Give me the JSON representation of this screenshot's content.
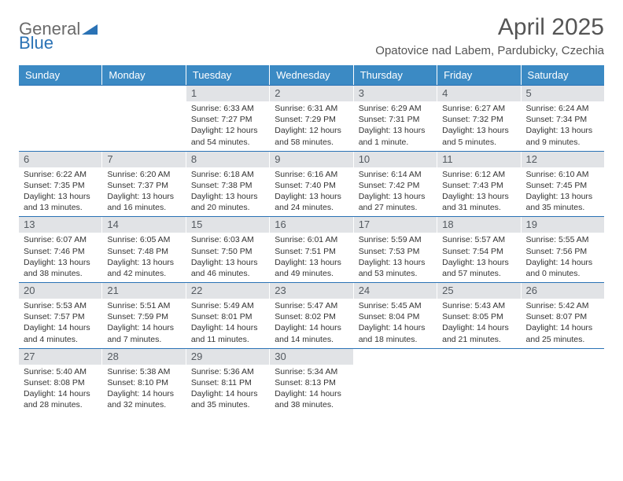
{
  "brand": {
    "word1": "General",
    "word2": "Blue"
  },
  "title": "April 2025",
  "location": "Opatovice nad Labem, Pardubicky, Czechia",
  "colors": {
    "accent": "#3b8ac4",
    "accent_dark": "#2a72b5",
    "daynum_bg": "#e1e3e6",
    "text": "#333333",
    "muted": "#555555"
  },
  "day_headers": [
    "Sunday",
    "Monday",
    "Tuesday",
    "Wednesday",
    "Thursday",
    "Friday",
    "Saturday"
  ],
  "weeks": [
    [
      {
        "empty": true
      },
      {
        "empty": true
      },
      {
        "day": "1",
        "sunrise": "Sunrise: 6:33 AM",
        "sunset": "Sunset: 7:27 PM",
        "daylight": "Daylight: 12 hours and 54 minutes."
      },
      {
        "day": "2",
        "sunrise": "Sunrise: 6:31 AM",
        "sunset": "Sunset: 7:29 PM",
        "daylight": "Daylight: 12 hours and 58 minutes."
      },
      {
        "day": "3",
        "sunrise": "Sunrise: 6:29 AM",
        "sunset": "Sunset: 7:31 PM",
        "daylight": "Daylight: 13 hours and 1 minute."
      },
      {
        "day": "4",
        "sunrise": "Sunrise: 6:27 AM",
        "sunset": "Sunset: 7:32 PM",
        "daylight": "Daylight: 13 hours and 5 minutes."
      },
      {
        "day": "5",
        "sunrise": "Sunrise: 6:24 AM",
        "sunset": "Sunset: 7:34 PM",
        "daylight": "Daylight: 13 hours and 9 minutes."
      }
    ],
    [
      {
        "day": "6",
        "sunrise": "Sunrise: 6:22 AM",
        "sunset": "Sunset: 7:35 PM",
        "daylight": "Daylight: 13 hours and 13 minutes."
      },
      {
        "day": "7",
        "sunrise": "Sunrise: 6:20 AM",
        "sunset": "Sunset: 7:37 PM",
        "daylight": "Daylight: 13 hours and 16 minutes."
      },
      {
        "day": "8",
        "sunrise": "Sunrise: 6:18 AM",
        "sunset": "Sunset: 7:38 PM",
        "daylight": "Daylight: 13 hours and 20 minutes."
      },
      {
        "day": "9",
        "sunrise": "Sunrise: 6:16 AM",
        "sunset": "Sunset: 7:40 PM",
        "daylight": "Daylight: 13 hours and 24 minutes."
      },
      {
        "day": "10",
        "sunrise": "Sunrise: 6:14 AM",
        "sunset": "Sunset: 7:42 PM",
        "daylight": "Daylight: 13 hours and 27 minutes."
      },
      {
        "day": "11",
        "sunrise": "Sunrise: 6:12 AM",
        "sunset": "Sunset: 7:43 PM",
        "daylight": "Daylight: 13 hours and 31 minutes."
      },
      {
        "day": "12",
        "sunrise": "Sunrise: 6:10 AM",
        "sunset": "Sunset: 7:45 PM",
        "daylight": "Daylight: 13 hours and 35 minutes."
      }
    ],
    [
      {
        "day": "13",
        "sunrise": "Sunrise: 6:07 AM",
        "sunset": "Sunset: 7:46 PM",
        "daylight": "Daylight: 13 hours and 38 minutes."
      },
      {
        "day": "14",
        "sunrise": "Sunrise: 6:05 AM",
        "sunset": "Sunset: 7:48 PM",
        "daylight": "Daylight: 13 hours and 42 minutes."
      },
      {
        "day": "15",
        "sunrise": "Sunrise: 6:03 AM",
        "sunset": "Sunset: 7:50 PM",
        "daylight": "Daylight: 13 hours and 46 minutes."
      },
      {
        "day": "16",
        "sunrise": "Sunrise: 6:01 AM",
        "sunset": "Sunset: 7:51 PM",
        "daylight": "Daylight: 13 hours and 49 minutes."
      },
      {
        "day": "17",
        "sunrise": "Sunrise: 5:59 AM",
        "sunset": "Sunset: 7:53 PM",
        "daylight": "Daylight: 13 hours and 53 minutes."
      },
      {
        "day": "18",
        "sunrise": "Sunrise: 5:57 AM",
        "sunset": "Sunset: 7:54 PM",
        "daylight": "Daylight: 13 hours and 57 minutes."
      },
      {
        "day": "19",
        "sunrise": "Sunrise: 5:55 AM",
        "sunset": "Sunset: 7:56 PM",
        "daylight": "Daylight: 14 hours and 0 minutes."
      }
    ],
    [
      {
        "day": "20",
        "sunrise": "Sunrise: 5:53 AM",
        "sunset": "Sunset: 7:57 PM",
        "daylight": "Daylight: 14 hours and 4 minutes."
      },
      {
        "day": "21",
        "sunrise": "Sunrise: 5:51 AM",
        "sunset": "Sunset: 7:59 PM",
        "daylight": "Daylight: 14 hours and 7 minutes."
      },
      {
        "day": "22",
        "sunrise": "Sunrise: 5:49 AM",
        "sunset": "Sunset: 8:01 PM",
        "daylight": "Daylight: 14 hours and 11 minutes."
      },
      {
        "day": "23",
        "sunrise": "Sunrise: 5:47 AM",
        "sunset": "Sunset: 8:02 PM",
        "daylight": "Daylight: 14 hours and 14 minutes."
      },
      {
        "day": "24",
        "sunrise": "Sunrise: 5:45 AM",
        "sunset": "Sunset: 8:04 PM",
        "daylight": "Daylight: 14 hours and 18 minutes."
      },
      {
        "day": "25",
        "sunrise": "Sunrise: 5:43 AM",
        "sunset": "Sunset: 8:05 PM",
        "daylight": "Daylight: 14 hours and 21 minutes."
      },
      {
        "day": "26",
        "sunrise": "Sunrise: 5:42 AM",
        "sunset": "Sunset: 8:07 PM",
        "daylight": "Daylight: 14 hours and 25 minutes."
      }
    ],
    [
      {
        "day": "27",
        "sunrise": "Sunrise: 5:40 AM",
        "sunset": "Sunset: 8:08 PM",
        "daylight": "Daylight: 14 hours and 28 minutes."
      },
      {
        "day": "28",
        "sunrise": "Sunrise: 5:38 AM",
        "sunset": "Sunset: 8:10 PM",
        "daylight": "Daylight: 14 hours and 32 minutes."
      },
      {
        "day": "29",
        "sunrise": "Sunrise: 5:36 AM",
        "sunset": "Sunset: 8:11 PM",
        "daylight": "Daylight: 14 hours and 35 minutes."
      },
      {
        "day": "30",
        "sunrise": "Sunrise: 5:34 AM",
        "sunset": "Sunset: 8:13 PM",
        "daylight": "Daylight: 14 hours and 38 minutes."
      },
      {
        "empty": true
      },
      {
        "empty": true
      },
      {
        "empty": true
      }
    ]
  ]
}
